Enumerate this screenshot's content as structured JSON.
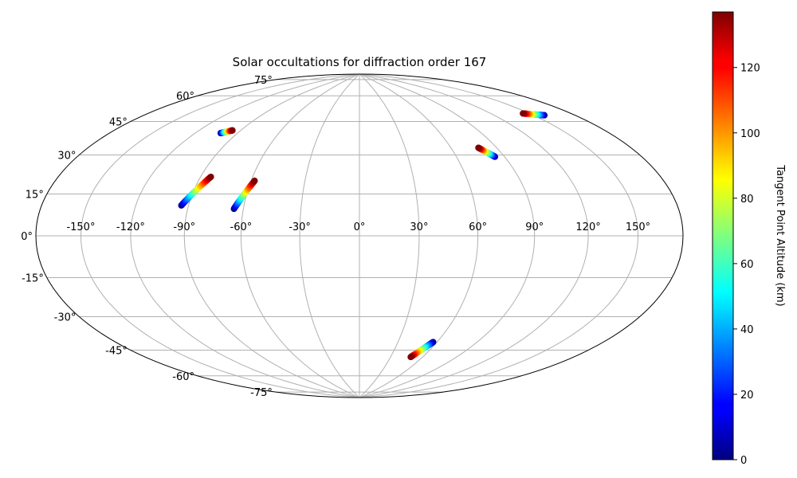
{
  "chart_data": {
    "type": "scatter",
    "projection": "hammer",
    "title": "Solar occultations for diffraction order 167",
    "grid": true,
    "lon_ticks": [
      -150,
      -120,
      -90,
      -60,
      -30,
      0,
      30,
      60,
      90,
      120,
      150
    ],
    "lon_tick_labels": [
      "-150°",
      "-120°",
      "-90°",
      "-60°",
      "-30°",
      "0°",
      "30°",
      "60°",
      "90°",
      "120°",
      "150°"
    ],
    "lat_ticks": [
      -75,
      -60,
      -45,
      -30,
      -15,
      0,
      15,
      30,
      45,
      60,
      75
    ],
    "lat_tick_labels": [
      "-75°",
      "-60°",
      "-45°",
      "-30°",
      "-15°",
      "0°",
      "15°",
      "30°",
      "45°",
      "60°",
      "75°"
    ],
    "colorbar": {
      "label": "Tangent Point Altitude (km)",
      "colormap": "jet",
      "range": [
        0,
        137
      ],
      "ticks": [
        0,
        20,
        40,
        60,
        80,
        100,
        120
      ],
      "tick_labels": [
        "0",
        "20",
        "40",
        "60",
        "80",
        "100",
        "120"
      ]
    },
    "series": [
      {
        "start": {
          "lon": -102,
          "lat": 49,
          "alt": 0
        },
        "end": {
          "lon": -96,
          "lat": 51,
          "alt": 137
        }
      },
      {
        "start": {
          "lon": -94,
          "lat": 14,
          "alt": 0
        },
        "end": {
          "lon": -84,
          "lat": 28,
          "alt": 137
        }
      },
      {
        "start": {
          "lon": -65,
          "lat": 13,
          "alt": 0
        },
        "end": {
          "lon": -58,
          "lat": 27,
          "alt": 137
        }
      },
      {
        "start": {
          "lon": 84,
          "lat": 38,
          "alt": 0
        },
        "end": {
          "lon": 78,
          "lat": 43,
          "alt": 137
        }
      },
      {
        "start": {
          "lon": 158,
          "lat": 52,
          "alt": 0
        },
        "end": {
          "lon": 145,
          "lat": 55,
          "alt": 137
        }
      },
      {
        "start": {
          "lon": 57,
          "lat": -54,
          "alt": 0
        },
        "end": {
          "lon": 49,
          "lat": -63,
          "alt": 137
        }
      }
    ]
  }
}
